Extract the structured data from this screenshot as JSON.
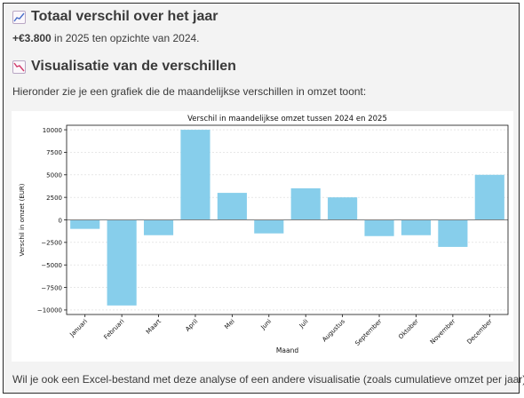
{
  "section1": {
    "icon": "chart-increasing-icon",
    "title": "Totaal verschil over het jaar",
    "amount": "+€3.800",
    "text": " in 2025 ten opzichte van 2024."
  },
  "section2": {
    "icon": "chart-decreasing-icon",
    "title": "Visualisatie van de verschillen",
    "intro": "Hieronder zie je een grafiek die de maandelijkse verschillen in omzet toont:"
  },
  "closing": "Wil je ook een Excel-bestand met deze analyse of een andere visualisatie (zoals cumulatieve omzet per jaar)?",
  "colors": {
    "bar": "#87ceeb",
    "zero_line": "#808080",
    "grid": "#d9d9d9"
  },
  "chart_data": {
    "type": "bar",
    "title": "Verschil in maandelijkse omzet tussen 2024 en 2025",
    "xlabel": "Maand",
    "ylabel": "Verschil in omzet (EUR)",
    "categories": [
      "Januari",
      "Februari",
      "Maart",
      "April",
      "Mei",
      "Juni",
      "Juli",
      "Augustus",
      "September",
      "Oktober",
      "November",
      "December"
    ],
    "values": [
      -1000,
      -9500,
      -1700,
      10000,
      3000,
      -1500,
      3500,
      2500,
      -1800,
      -1700,
      -3000,
      5000
    ],
    "ylim": [
      -10500,
      10500
    ],
    "yticks": [
      10000,
      7500,
      5000,
      2500,
      0,
      -2500,
      -5000,
      -7500,
      -10000
    ],
    "ytick_labels": [
      "10000",
      "7500",
      "5000",
      "2500",
      "0",
      "−2500",
      "−5000",
      "−7500",
      "−10000"
    ],
    "grid": "horizontal"
  }
}
